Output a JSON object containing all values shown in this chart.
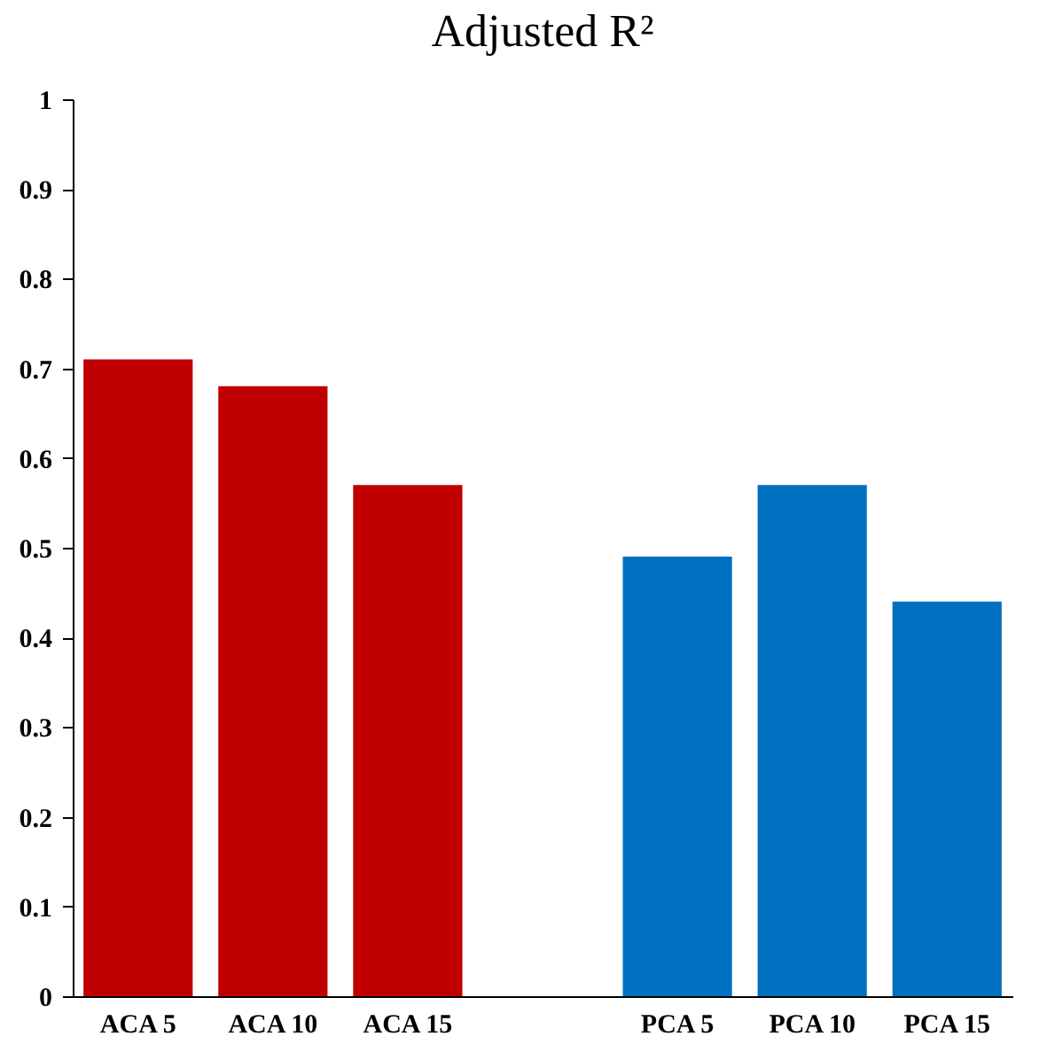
{
  "chart_data": {
    "type": "bar",
    "title": "Adjusted R²",
    "categories": [
      "ACA 5",
      "ACA 10",
      "ACA 15",
      null,
      "PCA 5",
      "PCA 10",
      "PCA 15"
    ],
    "values": [
      0.71,
      0.68,
      0.57,
      null,
      0.49,
      0.57,
      0.44
    ],
    "colors": [
      "#c00000",
      "#c00000",
      "#c00000",
      "#ffffff",
      "#0070c0",
      "#0070c0",
      "#0070c0"
    ],
    "ylim": [
      0,
      1
    ],
    "yticks": [
      0,
      0.1,
      0.2,
      0.3,
      0.4,
      0.5,
      0.6,
      0.7,
      0.8,
      0.9,
      1
    ],
    "grid": false
  }
}
